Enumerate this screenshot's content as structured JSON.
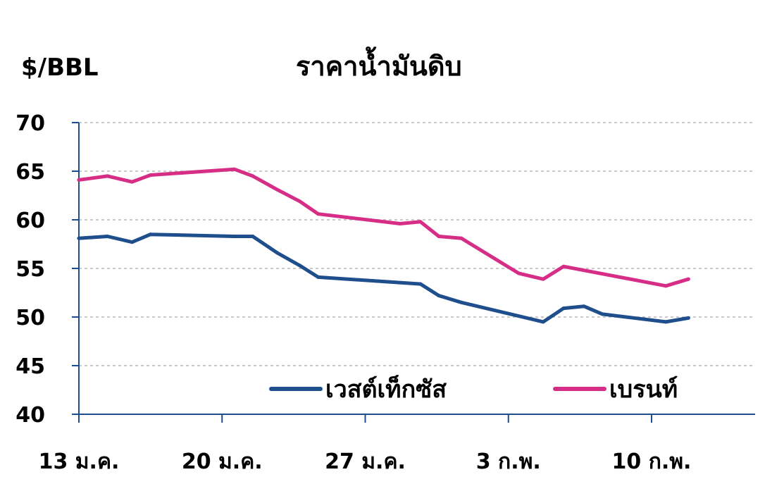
{
  "chart_data": {
    "type": "line",
    "title": "ราคาน้ำมันดิบ",
    "ylabel": "$/BBL",
    "xlabel": "",
    "ylim": [
      40,
      70
    ],
    "yticks": [
      40,
      45,
      50,
      55,
      60,
      65,
      70
    ],
    "xtick_labels": [
      "13 ม.ค.",
      "20 ม.ค.",
      "27 ม.ค.",
      "3 ก.พ.",
      "10 ก.พ."
    ],
    "xtick_days": [
      0,
      7,
      14,
      21,
      28
    ],
    "grid": true,
    "legend_position": "bottom-inside",
    "series": [
      {
        "name": "เวสต์เท็กซัส",
        "color": "#1f4e8c",
        "points": [
          [
            0,
            58.1
          ],
          [
            1.4,
            58.3
          ],
          [
            2.6,
            57.7
          ],
          [
            3.5,
            58.5
          ],
          [
            7.6,
            58.3
          ],
          [
            8.5,
            58.3
          ],
          [
            9.7,
            56.6
          ],
          [
            10.8,
            55.3
          ],
          [
            11.7,
            54.1
          ],
          [
            16.7,
            53.4
          ],
          [
            17.6,
            52.2
          ],
          [
            18.7,
            51.5
          ],
          [
            22.7,
            49.5
          ],
          [
            23.7,
            50.9
          ],
          [
            24.7,
            51.1
          ],
          [
            25.6,
            50.3
          ],
          [
            28.7,
            49.5
          ],
          [
            29.8,
            49.9
          ]
        ]
      },
      {
        "name": "เบรนท์",
        "color": "#d62d87",
        "points": [
          [
            0,
            64.1
          ],
          [
            1.4,
            64.5
          ],
          [
            2.6,
            63.9
          ],
          [
            3.5,
            64.6
          ],
          [
            7.6,
            65.2
          ],
          [
            8.5,
            64.5
          ],
          [
            9.7,
            63.1
          ],
          [
            10.8,
            61.9
          ],
          [
            11.7,
            60.6
          ],
          [
            15.7,
            59.6
          ],
          [
            16.7,
            59.8
          ],
          [
            17.6,
            58.3
          ],
          [
            18.7,
            58.1
          ],
          [
            21.5,
            54.5
          ],
          [
            22.7,
            53.9
          ],
          [
            23.7,
            55.2
          ],
          [
            28.7,
            53.2
          ],
          [
            29.8,
            53.9
          ]
        ]
      }
    ]
  }
}
